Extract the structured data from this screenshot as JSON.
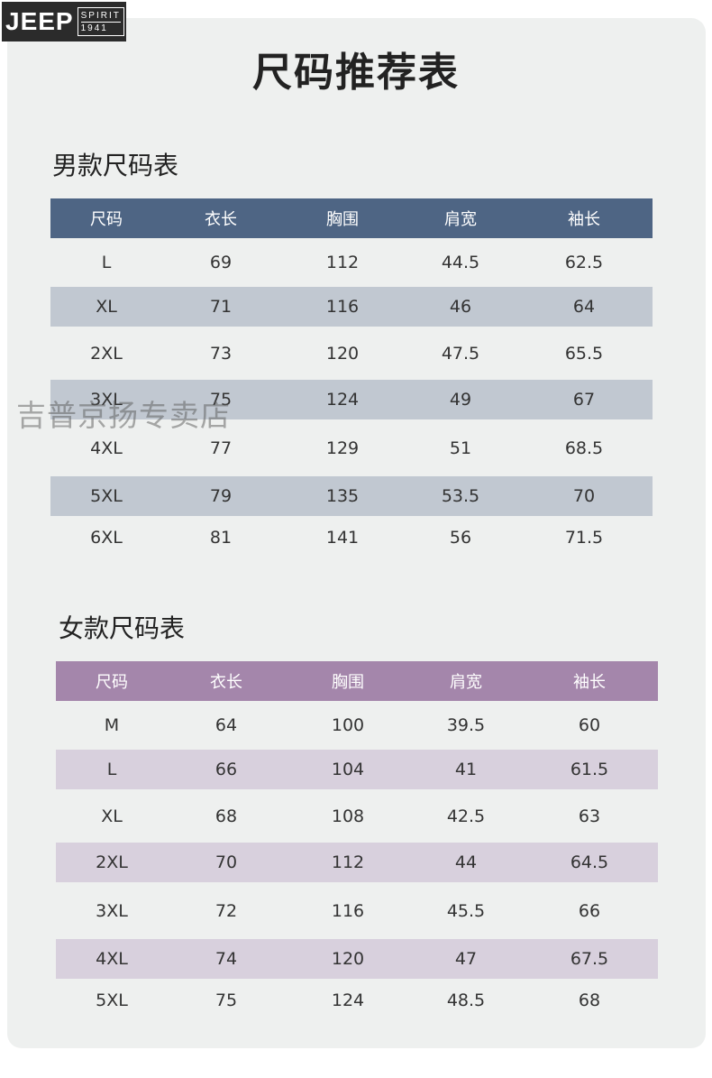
{
  "logo": {
    "brand": "JEEP",
    "spirit": "SPIRIT",
    "year": "1941"
  },
  "page_title": "尺码推荐表",
  "watermark": "吉普京扬专卖店",
  "men": {
    "title": "男款尺码表",
    "headers": [
      "尺码",
      "衣长",
      "胸围",
      "肩宽",
      "袖长"
    ],
    "rows": [
      [
        "L",
        "69",
        "112",
        "44.5",
        "62.5"
      ],
      [
        "XL",
        "71",
        "116",
        "46",
        "64"
      ],
      [
        "2XL",
        "73",
        "120",
        "47.5",
        "65.5"
      ],
      [
        "3XL",
        "75",
        "124",
        "49",
        "67"
      ],
      [
        "4XL",
        "77",
        "129",
        "51",
        "68.5"
      ],
      [
        "5XL",
        "79",
        "135",
        "53.5",
        "70"
      ],
      [
        "6XL",
        "81",
        "141",
        "56",
        "71.5"
      ]
    ],
    "colors": {
      "header": "#4e6584",
      "shade": "#c1c8d1"
    }
  },
  "women": {
    "title": "女款尺码表",
    "headers": [
      "尺码",
      "衣长",
      "胸围",
      "肩宽",
      "袖长"
    ],
    "rows": [
      [
        "M",
        "64",
        "100",
        "39.5",
        "60"
      ],
      [
        "L",
        "66",
        "104",
        "41",
        "61.5"
      ],
      [
        "XL",
        "68",
        "108",
        "42.5",
        "63"
      ],
      [
        "2XL",
        "70",
        "112",
        "44",
        "64.5"
      ],
      [
        "3XL",
        "72",
        "116",
        "45.5",
        "66"
      ],
      [
        "4XL",
        "74",
        "120",
        "47",
        "67.5"
      ],
      [
        "5XL",
        "75",
        "124",
        "48.5",
        "68"
      ]
    ],
    "colors": {
      "header": "#a486ab",
      "shade": "#d8d0dd"
    }
  }
}
